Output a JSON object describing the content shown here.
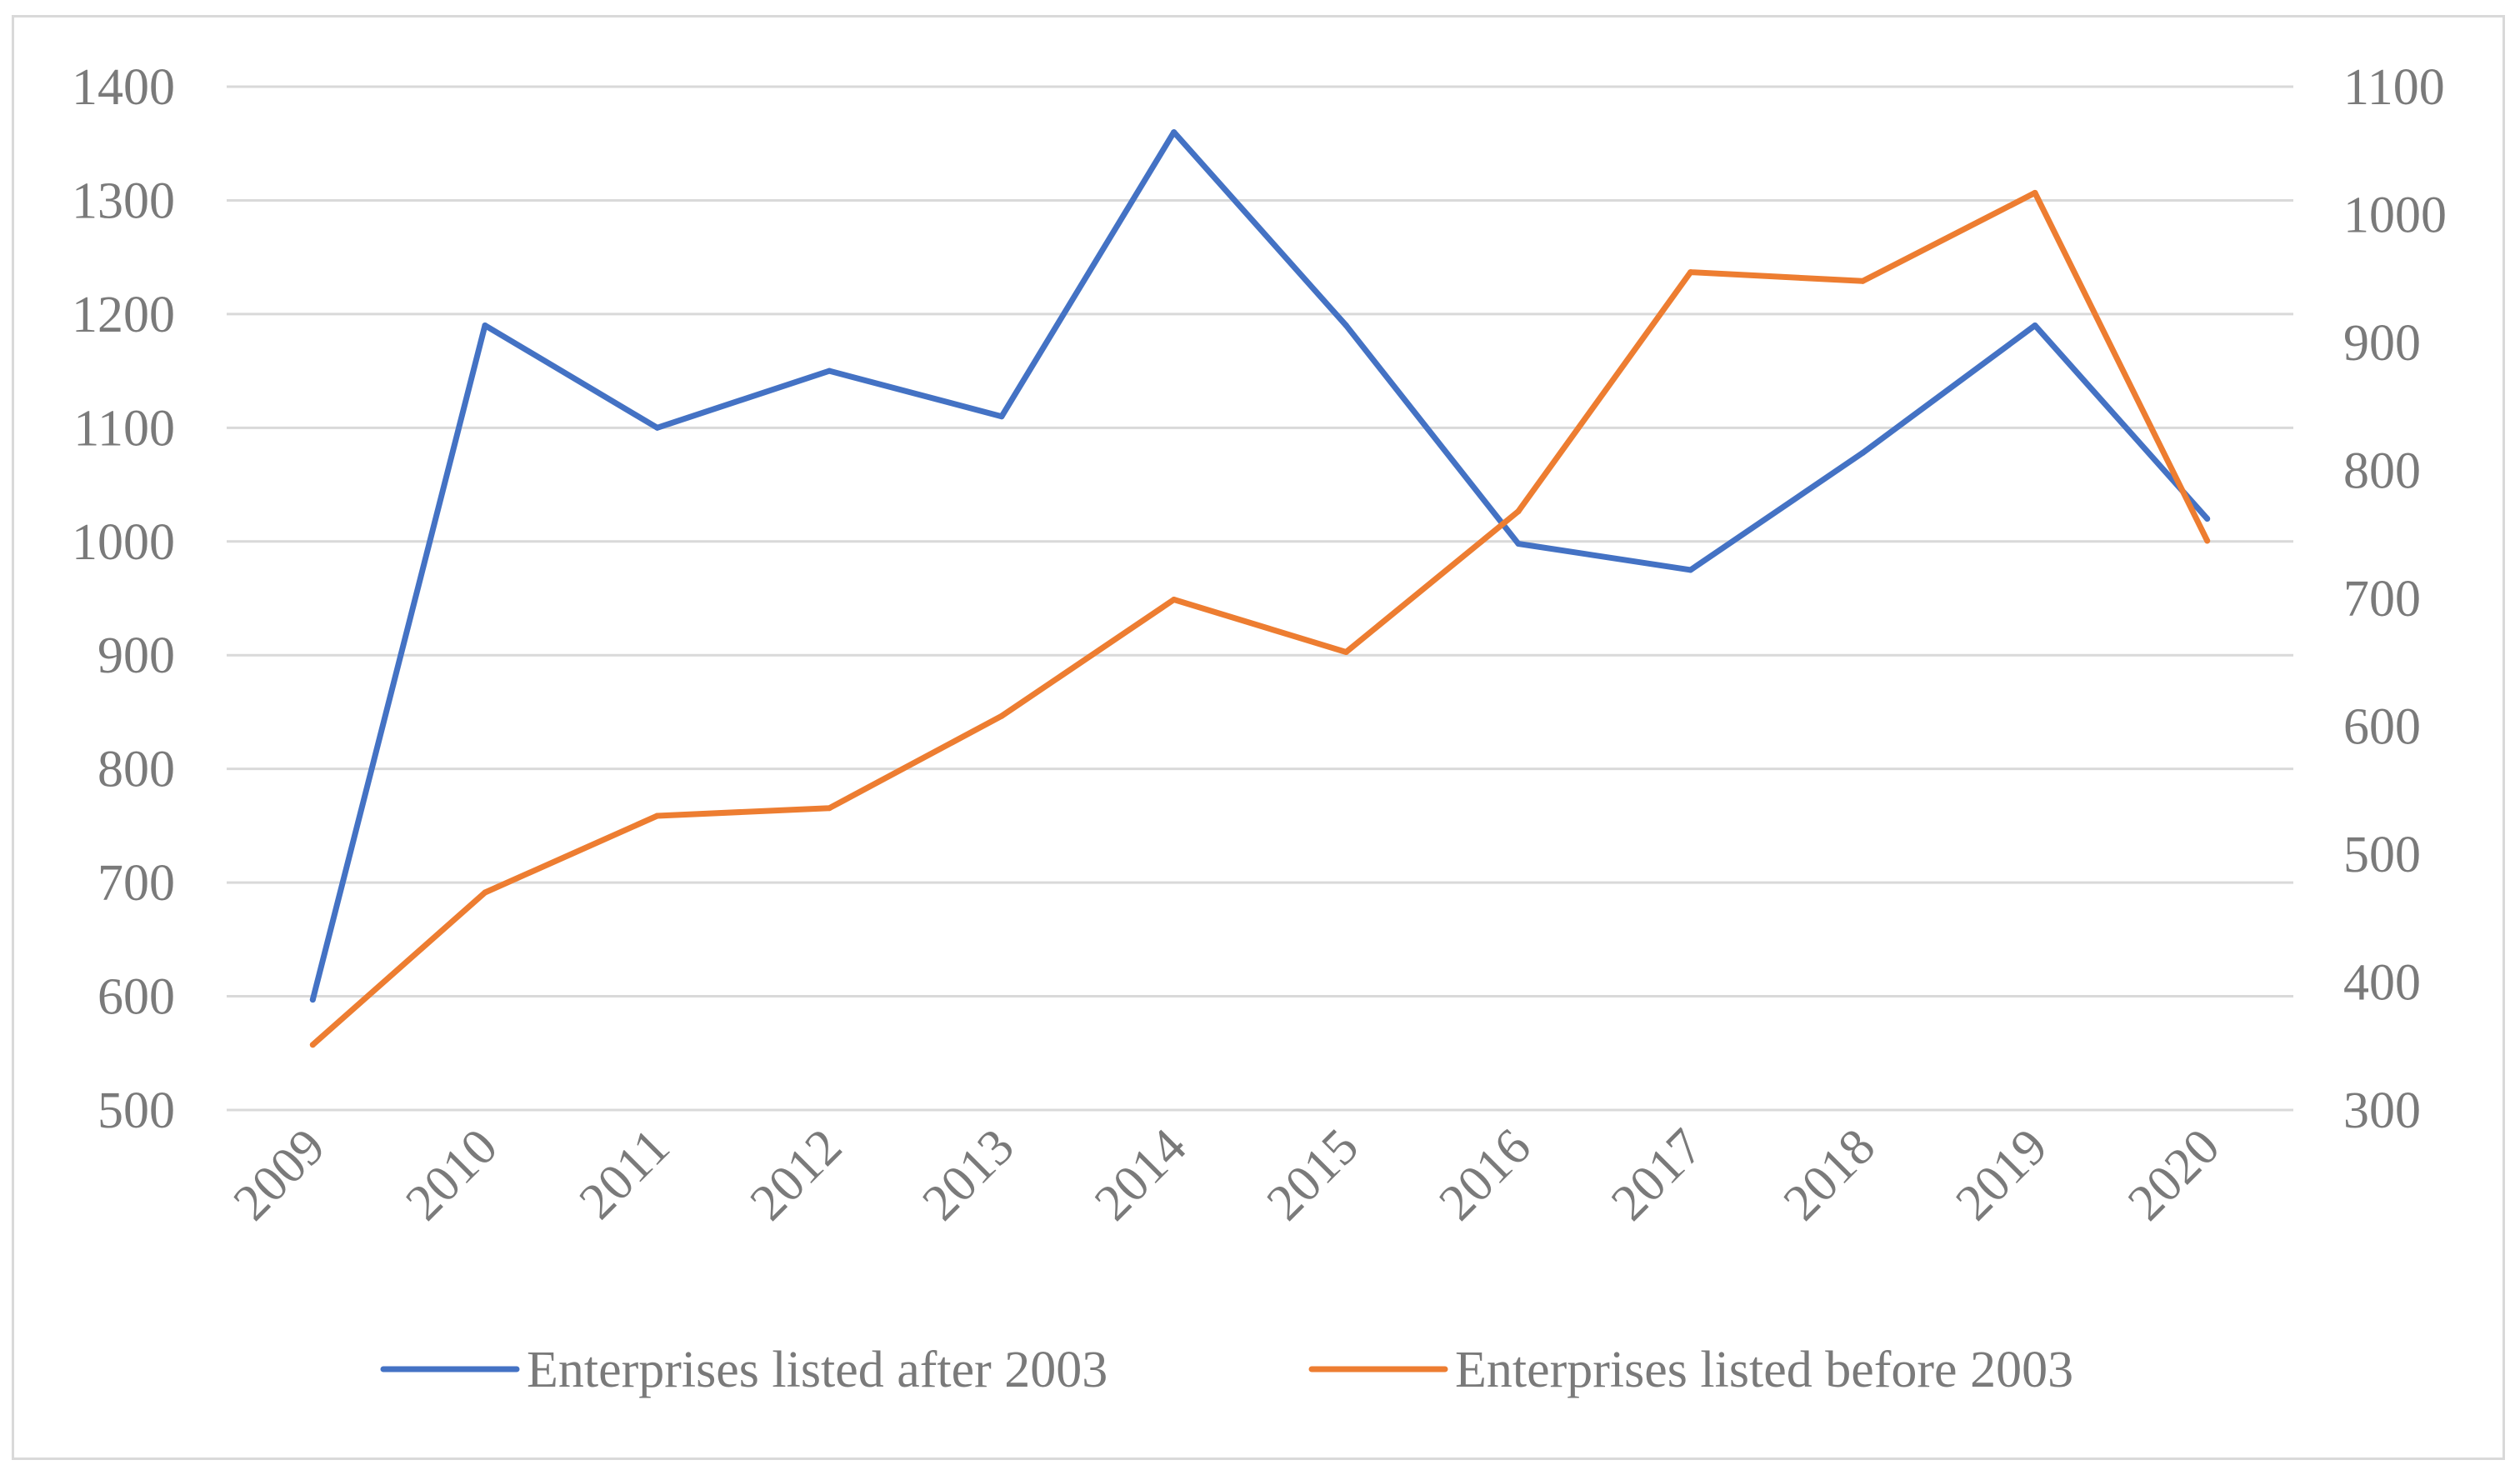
{
  "chart_data": {
    "type": "line",
    "title": "",
    "xlabel": "",
    "ylabel": "",
    "categories": [
      "2009",
      "2010",
      "2011",
      "2012",
      "2013",
      "2014",
      "2015",
      "2016",
      "2017",
      "2018",
      "2019",
      "2020"
    ],
    "y_left": {
      "lim": [
        500,
        1400
      ],
      "ticks": [
        "500",
        "600",
        "700",
        "800",
        "900",
        "1000",
        "1100",
        "1200",
        "1300",
        "1400"
      ]
    },
    "y_right": {
      "lim": [
        300,
        1100
      ],
      "ticks": [
        "300",
        "400",
        "500",
        "600",
        "700",
        "800",
        "900",
        "1000",
        "1100"
      ]
    },
    "grid": true,
    "legend_position": "bottom",
    "series": [
      {
        "name": "Enterprises listed after 2003",
        "axis": "left",
        "color": "#4472c4",
        "values": [
          597,
          1190,
          1100,
          1150,
          1110,
          1360,
          1190,
          998,
          975,
          1078,
          1190,
          1020
        ]
      },
      {
        "name": "Enterprises listed before 2003",
        "axis": "right",
        "color": "#ed7d31",
        "values": [
          351,
          470,
          530,
          536,
          608,
          699,
          658,
          768,
          955,
          948,
          1017,
          745
        ]
      }
    ]
  }
}
